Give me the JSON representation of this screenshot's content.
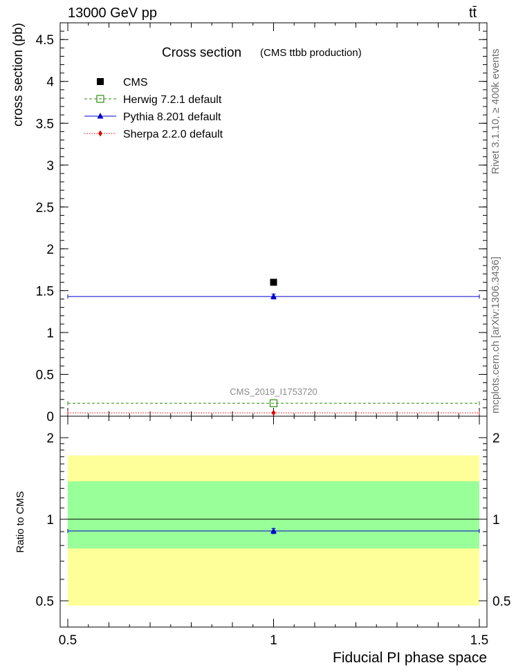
{
  "header": {
    "energy": "13000 GeV pp",
    "process": "tt̄"
  },
  "side_labels": {
    "rivet": "Rivet 3.1.10, ≥ 400k events",
    "mcplots": "mcplots.cern.ch [arXiv:1306.3436]"
  },
  "chart_data": [
    {
      "type": "scatter",
      "title": "Cross section",
      "subtitle": "(CMS ttbb production)",
      "analysis_label": "CMS_2019_I1753720",
      "xlabel": "",
      "ylabel": "cross section (pb)",
      "xlim": [
        0.5,
        1.5
      ],
      "ylim": [
        0,
        4.7
      ],
      "yticks": [
        0,
        0.5,
        1,
        1.5,
        2,
        2.5,
        3,
        3.5,
        4,
        4.5
      ],
      "ytick_labels": [
        "0",
        "0.5",
        "1",
        "1.5",
        "2",
        "2.5",
        "3",
        "3.5",
        "4",
        "4.5"
      ],
      "legend_position": "top-left",
      "series": [
        {
          "name": "CMS",
          "color": "#000000",
          "marker": "square",
          "x": [
            1
          ],
          "y": [
            1.6
          ],
          "yerr": [
            0.0
          ]
        },
        {
          "name": "Herwig 7.2.1 default",
          "color": "#2e8b0e",
          "marker": "open-square",
          "line": "dashed",
          "x": [
            1
          ],
          "y": [
            0.155
          ],
          "yerr": [
            0.0
          ]
        },
        {
          "name": "Pythia 8.201 default",
          "color": "#0000cc",
          "marker": "triangle",
          "line": "solid",
          "x": [
            1
          ],
          "y": [
            1.43
          ],
          "yerr": [
            0.03
          ]
        },
        {
          "name": "Sherpa 2.2.0 default",
          "color": "#e00000",
          "marker": "diamond",
          "line": "dotted",
          "x": [
            1
          ],
          "y": [
            0.04
          ],
          "yerr": [
            0.0
          ]
        }
      ]
    },
    {
      "type": "scatter",
      "title": "",
      "xlabel": "Fiducial PI phase space",
      "ylabel": "Ratio to CMS",
      "xlim": [
        0.5,
        1.5
      ],
      "ylim": [
        0.4,
        2.4
      ],
      "log_y": true,
      "yticks": [
        0.5,
        1,
        2
      ],
      "ytick_labels": [
        "0.5",
        "1",
        "2"
      ],
      "xticks": [
        0.5,
        1,
        1.5
      ],
      "xtick_labels": [
        "0.5",
        "1",
        "1.5"
      ],
      "bands": [
        {
          "name": "outer",
          "color": "#ffff99",
          "lo": 0.48,
          "hi": 1.72
        },
        {
          "name": "inner",
          "color": "#99ff99",
          "lo": 0.78,
          "hi": 1.38
        }
      ],
      "reference_line": 1.0,
      "series": [
        {
          "name": "Pythia 8.201 default",
          "color": "#0000cc",
          "marker": "triangle",
          "x": [
            1
          ],
          "y": [
            0.905
          ],
          "yerr": [
            0.02
          ]
        }
      ]
    }
  ]
}
